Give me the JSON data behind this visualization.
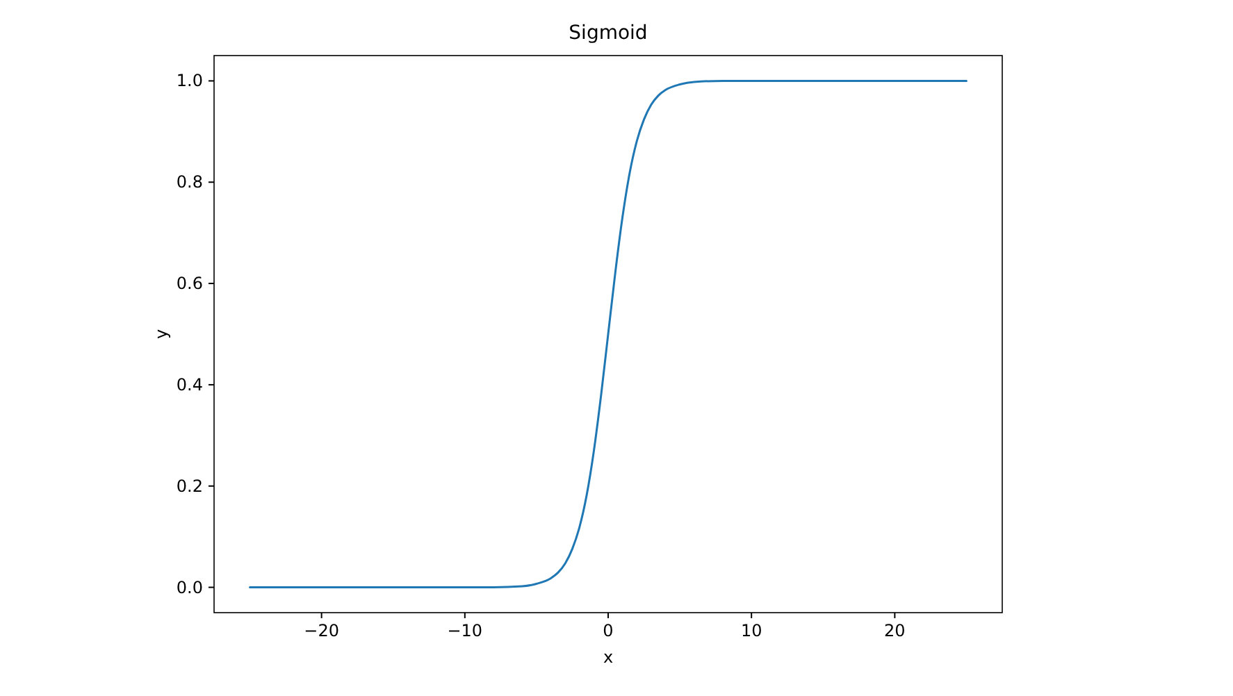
{
  "chart_data": {
    "type": "line",
    "title": "Sigmoid",
    "xlabel": "x",
    "ylabel": "y",
    "x": [
      -25,
      -20,
      -15,
      -10,
      -8,
      -6,
      -5,
      -4,
      -3.5,
      -3,
      -2.5,
      -2,
      -1.5,
      -1,
      -0.5,
      0,
      0.5,
      1,
      1.5,
      2,
      2.5,
      3,
      3.5,
      4,
      5,
      6,
      8,
      10,
      15,
      20,
      25
    ],
    "series": [
      {
        "color": "#1f77b4",
        "values": [
          0,
          0,
          0,
          0,
          0,
          0.002,
          0.007,
          0.018,
          0.029,
          0.047,
          0.076,
          0.119,
          0.182,
          0.269,
          0.378,
          0.5,
          0.622,
          0.731,
          0.818,
          0.881,
          0.924,
          0.953,
          0.971,
          0.982,
          0.993,
          0.998,
          1,
          1,
          1,
          1,
          1
        ]
      }
    ],
    "xlim": [
      -27.5,
      27.5
    ],
    "xticks": [
      {
        "value": -20,
        "label": "−20"
      },
      {
        "value": -10,
        "label": "−10"
      },
      0,
      10,
      20
    ],
    "ylim": [
      -0.05,
      1.05
    ],
    "yticks": [
      {
        "value": 0,
        "label": "0.0"
      },
      {
        "value": 0.2,
        "label": "0.2"
      },
      {
        "value": 0.4,
        "label": "0.4"
      },
      {
        "value": 0.6,
        "label": "0.6"
      },
      {
        "value": 0.8,
        "label": "0.8"
      },
      {
        "value": 1,
        "label": "1.0"
      }
    ],
    "grid": false,
    "marker": "none",
    "line_style": "solid"
  }
}
